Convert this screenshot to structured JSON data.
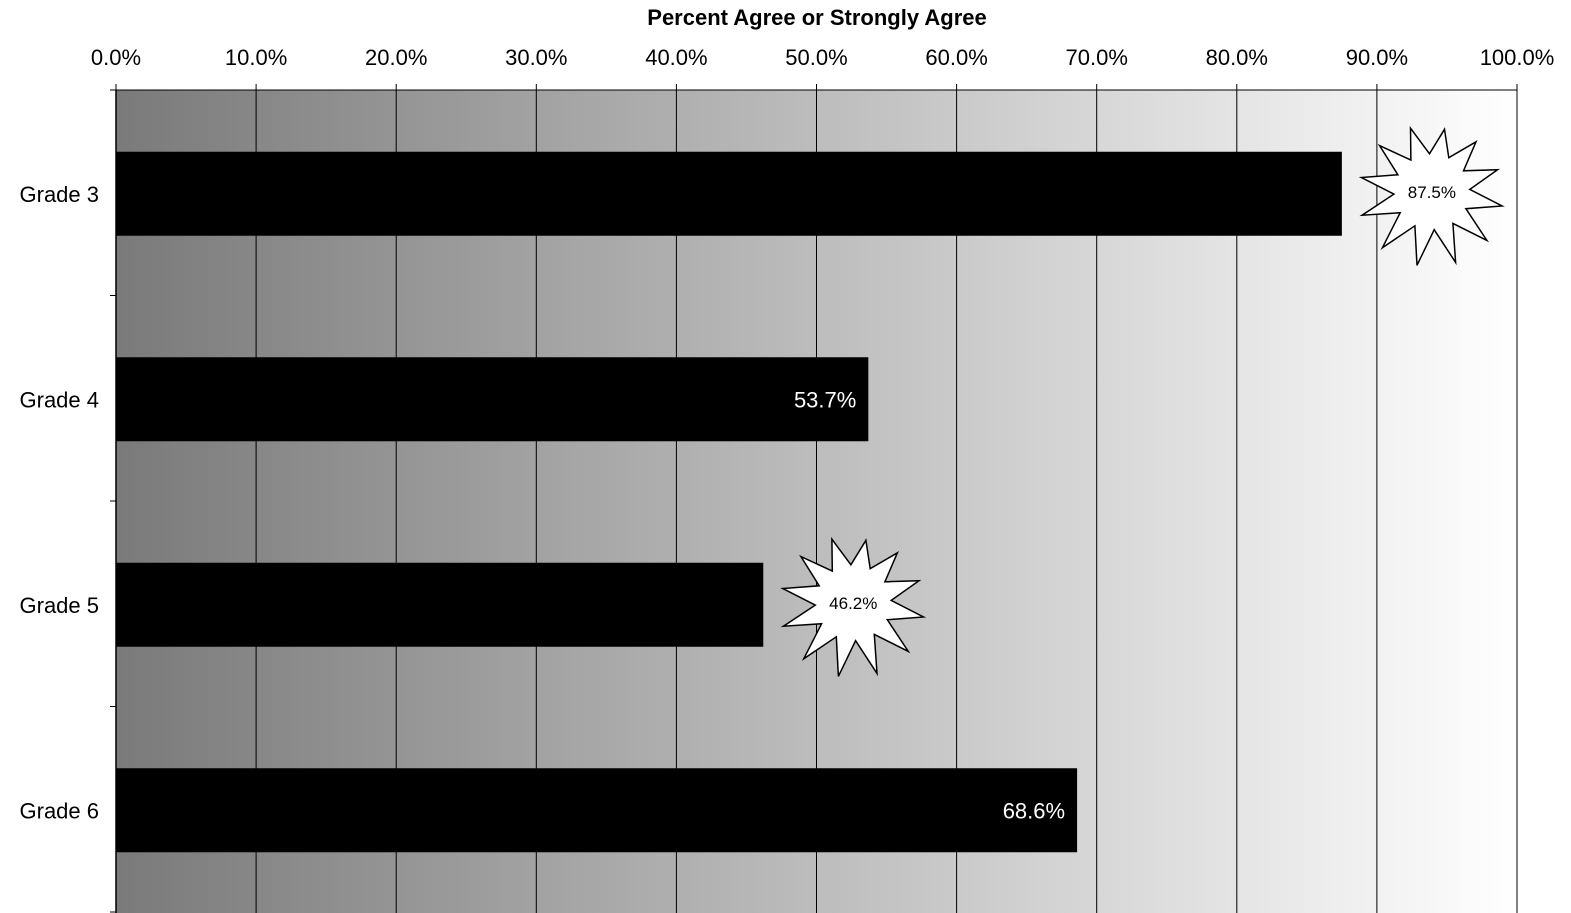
{
  "chart_data": {
    "type": "bar",
    "orientation": "horizontal",
    "title": "Percent Agree or Strongly Agree",
    "categories": [
      "Grade 3",
      "Grade 4",
      "Grade 5",
      "Grade 6"
    ],
    "values": [
      87.5,
      53.7,
      46.2,
      68.6
    ],
    "value_labels": [
      "87.5%",
      "53.7%",
      "46.2%",
      "68.6%"
    ],
    "highlighted": [
      true,
      false,
      true,
      false
    ],
    "xlim": [
      0,
      100
    ],
    "x_ticks": [
      0,
      10,
      20,
      30,
      40,
      50,
      60,
      70,
      80,
      90,
      100
    ],
    "x_tick_labels": [
      "0.0%",
      "10.0%",
      "20.0%",
      "30.0%",
      "40.0%",
      "50.0%",
      "60.0%",
      "70.0%",
      "80.0%",
      "90.0%",
      "100.0%"
    ],
    "x_axis_position": "top",
    "grid": true,
    "legend": "none",
    "colors": {
      "bar": "#000000",
      "bar_label": "#ffffff",
      "burst_fill": "#ffffff",
      "burst_stroke": "#000000",
      "background_left": "#7a7a7a",
      "background_right": "#ffffff",
      "grid": "#000000"
    }
  }
}
